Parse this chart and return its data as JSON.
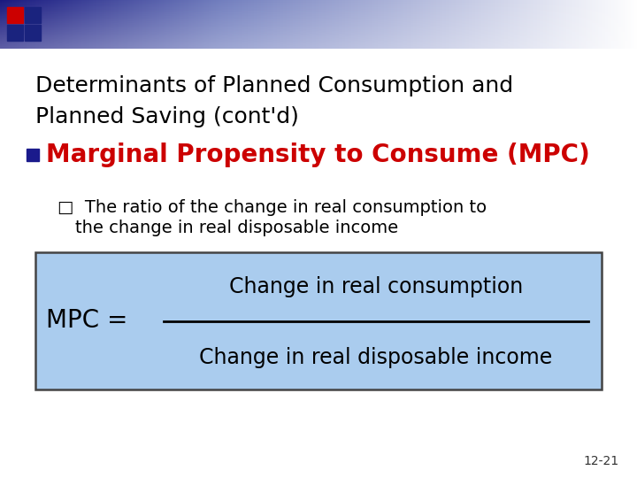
{
  "background_color": "#ffffff",
  "title_text_line1": "Determinants of Planned Consumption and",
  "title_text_line2": "Planned Saving (cont'd)",
  "title_color": "#000000",
  "title_fontsize": 18,
  "bullet_square_color": "#1a1a8c",
  "bullet_text": "Marginal Propensity to Consume (MPC)",
  "bullet_color": "#cc0000",
  "bullet_fontsize": 20,
  "sub_bullet_marker": "□",
  "sub_bullet_text_line1": "The ratio of the change in real consumption to",
  "sub_bullet_text_line2": "the change in real disposable income",
  "sub_bullet_fontsize": 14,
  "sub_bullet_color": "#000000",
  "box_bg_color": "#aaccee",
  "box_border_color": "#444444",
  "mpc_label": "MPC =",
  "numerator_text": "Change in real consumption",
  "denominator_text": "Change in real disposable income",
  "formula_fontsize": 17,
  "page_number": "12-21",
  "page_number_color": "#333333",
  "page_number_fontsize": 10,
  "header_dark_color": "#1a237e",
  "header_mid_color": "#9090b0",
  "sq1_color": "#cc0000",
  "sq2_color": "#1a237e"
}
